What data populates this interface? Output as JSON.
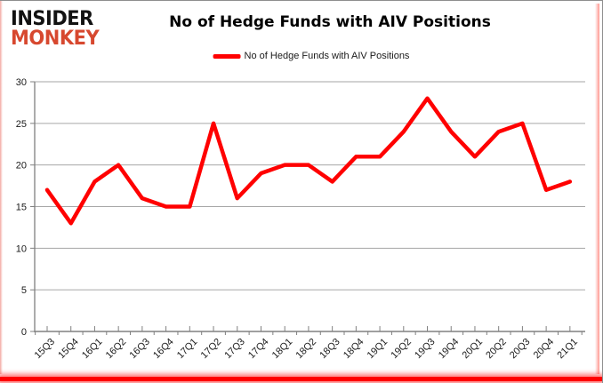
{
  "logo": {
    "line1": "INSIDER",
    "line2": "MONKEY"
  },
  "header": {
    "title": "No of Hedge Funds with AIV Positions"
  },
  "legend": {
    "label": "No of Hedge Funds with AIV Positions"
  },
  "colors": {
    "series_red": "#ff0000",
    "logo_red": "#d7482f",
    "gridline": "#a6a6a6",
    "axis": "#808080",
    "tick_text": "#1a1a1a"
  },
  "chart_data": {
    "type": "line",
    "title": "No of Hedge Funds with AIV Positions",
    "categories": [
      "15Q3",
      "15Q4",
      "16Q1",
      "16Q2",
      "16Q3",
      "16Q4",
      "17Q1",
      "17Q2",
      "17Q3",
      "17Q4",
      "18Q1",
      "18Q2",
      "18Q3",
      "18Q4",
      "19Q1",
      "19Q2",
      "19Q3",
      "19Q4",
      "20Q1",
      "20Q2",
      "20Q3",
      "20Q4",
      "21Q1"
    ],
    "series": [
      {
        "name": "No of Hedge Funds with AIV Positions",
        "color": "#ff0000",
        "values": [
          17,
          13,
          18,
          20,
          16,
          15,
          15,
          25,
          16,
          19,
          20,
          20,
          18,
          21,
          21,
          24,
          28,
          24,
          21,
          24,
          25,
          17,
          18
        ]
      }
    ],
    "xlabel": "",
    "ylabel": "",
    "ylim": [
      0,
      30
    ],
    "ytick_step": 5,
    "grid": "horizontal",
    "legend_position": "top-center",
    "x_label_rotation": -45
  }
}
